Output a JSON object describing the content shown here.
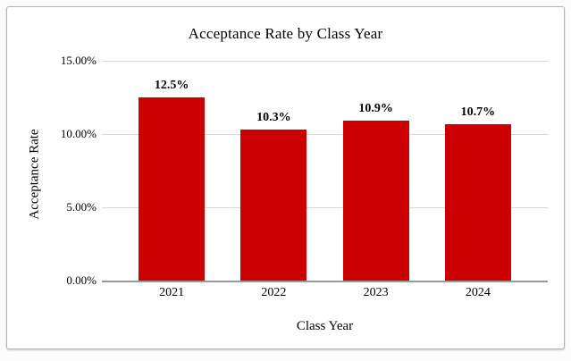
{
  "chart_data": {
    "type": "bar",
    "title": "Acceptance Rate by Class Year",
    "xlabel": "Class Year",
    "ylabel": "Acceptance Rate",
    "categories": [
      "2021",
      "2022",
      "2023",
      "2024"
    ],
    "values": [
      12.5,
      10.3,
      10.9,
      10.7
    ],
    "value_labels": [
      "12.5%",
      "10.3%",
      "10.9%",
      "10.7%"
    ],
    "yticks": [
      {
        "value": 0,
        "label": "0.00%"
      },
      {
        "value": 5,
        "label": "5.00%"
      },
      {
        "value": 10,
        "label": "10.00%"
      },
      {
        "value": 15,
        "label": "15.00%"
      }
    ],
    "ylim": [
      0,
      15
    ],
    "grid": true,
    "legend": "none",
    "bar_color": "#cc0000",
    "gridline_color": "#d9d9d9",
    "axis_line_color": "#999999",
    "text_color": "#000000"
  }
}
